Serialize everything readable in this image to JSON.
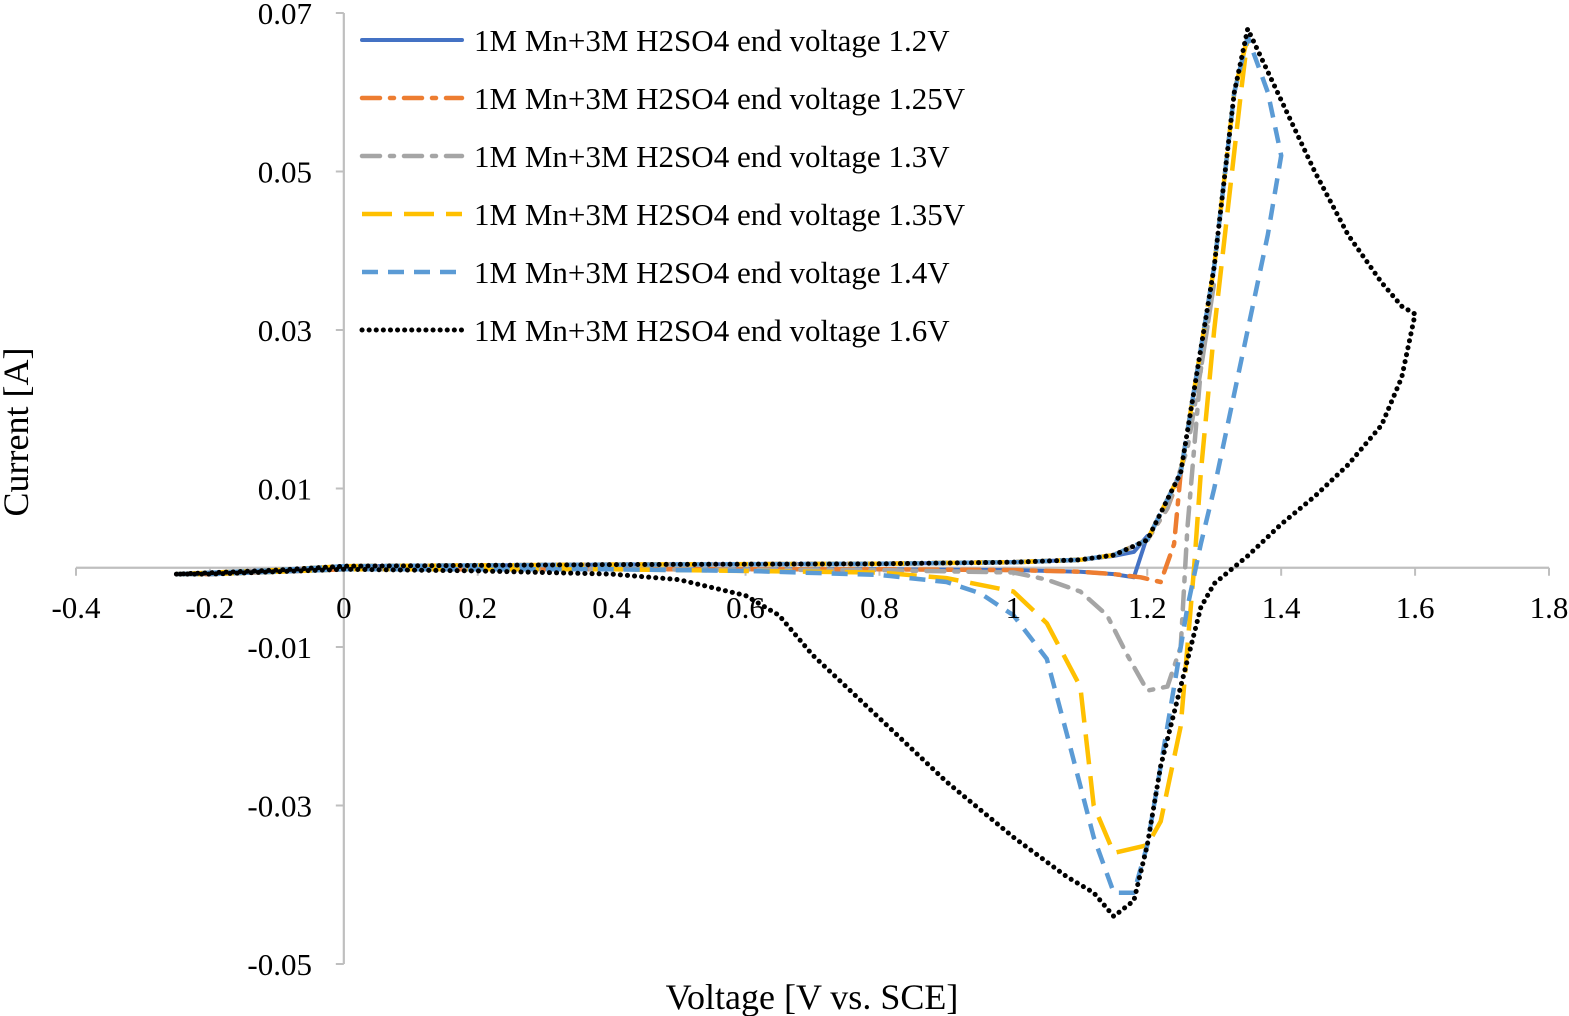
{
  "chart_data": {
    "type": "line",
    "title": "",
    "xlabel": "Voltage [V vs. SCE]",
    "ylabel": "Current [A]",
    "xlim": [
      -0.4,
      1.8
    ],
    "ylim": [
      -0.05,
      0.07
    ],
    "x_ticks": [
      -0.4,
      -0.2,
      0,
      0.2,
      0.4,
      0.6,
      0.8,
      1,
      1.2,
      1.4,
      1.6,
      1.8
    ],
    "x_tick_labels": [
      "-0.4",
      "-0.2",
      "0",
      "0.2",
      "0.4",
      "0.6",
      "0.8",
      "1",
      "1.2",
      "1.4",
      "1.6",
      "1.8"
    ],
    "y_ticks": [
      -0.05,
      -0.03,
      -0.01,
      0.01,
      0.03,
      0.05,
      0.07
    ],
    "y_tick_labels": [
      "-0.05",
      "-0.03",
      "-0.01",
      "0.01",
      "0.03",
      "0.05",
      "0.07"
    ],
    "grid": false,
    "legend_position": "top-left",
    "series": [
      {
        "name": "1M Mn+3M H2SO4 end voltage 1.2V",
        "color": "#4472C4",
        "dash": "solid",
        "x": [
          -0.25,
          -0.1,
          0.0,
          0.4,
          0.8,
          1.0,
          1.1,
          1.15,
          1.18,
          1.2,
          1.18,
          1.15,
          1.1,
          1.0,
          0.8,
          0.4,
          0.0,
          -0.1,
          -0.2,
          -0.25
        ],
        "y": [
          -0.0008,
          -0.0003,
          0.0002,
          0.0004,
          0.0005,
          0.0007,
          0.001,
          0.0015,
          0.002,
          0.004,
          -0.0012,
          -0.0008,
          -0.0005,
          -0.0003,
          -0.0002,
          -0.0002,
          -0.0002,
          -0.0005,
          -0.0008,
          -0.0008
        ]
      },
      {
        "name": "1M Mn+3M H2SO4 end voltage 1.25V",
        "color": "#ED7D31",
        "dash": "dash-dot",
        "x": [
          -0.25,
          -0.1,
          0.0,
          0.4,
          0.8,
          1.0,
          1.1,
          1.15,
          1.2,
          1.23,
          1.25,
          1.24,
          1.22,
          1.19,
          1.15,
          1.1,
          1.0,
          0.8,
          0.4,
          0.0,
          -0.1,
          -0.2,
          -0.25
        ],
        "y": [
          -0.0008,
          -0.0003,
          0.0002,
          0.0004,
          0.0005,
          0.0007,
          0.001,
          0.0016,
          0.0035,
          0.0075,
          0.012,
          0.003,
          -0.0018,
          -0.0012,
          -0.0008,
          -0.0005,
          -0.0003,
          -0.0002,
          -0.0002,
          -0.0002,
          -0.0005,
          -0.0008,
          -0.0008
        ]
      },
      {
        "name": "1M Mn+3M H2SO4 end voltage 1.3V",
        "color": "#A5A5A5",
        "dash": "dash-dot",
        "x": [
          -0.25,
          -0.1,
          0.0,
          0.4,
          0.8,
          1.0,
          1.1,
          1.15,
          1.2,
          1.23,
          1.26,
          1.28,
          1.3,
          1.28,
          1.26,
          1.25,
          1.23,
          1.2,
          1.17,
          1.14,
          1.1,
          1.05,
          1.0,
          0.8,
          0.4,
          0.0,
          -0.1,
          -0.2,
          -0.25
        ],
        "y": [
          -0.0008,
          -0.0003,
          0.0002,
          0.0004,
          0.0005,
          0.0007,
          0.001,
          0.0016,
          0.0035,
          0.0075,
          0.015,
          0.025,
          0.036,
          0.025,
          0.005,
          -0.01,
          -0.015,
          -0.0155,
          -0.011,
          -0.006,
          -0.003,
          -0.0015,
          -0.0006,
          -0.0003,
          -0.0002,
          -0.0002,
          -0.0005,
          -0.0008,
          -0.0008
        ]
      },
      {
        "name": "1M Mn+3M H2SO4 end voltage 1.35V",
        "color": "#FFC000",
        "dash": "long-dash",
        "x": [
          -0.25,
          -0.1,
          0.0,
          0.4,
          0.8,
          1.0,
          1.1,
          1.15,
          1.2,
          1.25,
          1.3,
          1.33,
          1.35,
          1.34,
          1.32,
          1.3,
          1.28,
          1.27,
          1.26,
          1.25,
          1.22,
          1.2,
          1.15,
          1.12,
          1.1,
          1.05,
          1.0,
          0.9,
          0.8,
          0.4,
          0.0,
          -0.1,
          -0.2,
          -0.25
        ],
        "y": [
          -0.0008,
          -0.0003,
          0.0002,
          0.0004,
          0.0005,
          0.0007,
          0.001,
          0.0016,
          0.0035,
          0.012,
          0.038,
          0.06,
          0.067,
          0.06,
          0.045,
          0.03,
          0.012,
          0.0,
          -0.01,
          -0.02,
          -0.032,
          -0.035,
          -0.036,
          -0.03,
          -0.015,
          -0.007,
          -0.003,
          -0.0013,
          -0.0006,
          -0.0002,
          -0.0002,
          -0.0005,
          -0.0008,
          -0.0008
        ]
      },
      {
        "name": "1M Mn+3M H2SO4 end voltage 1.4V",
        "color": "#5B9BD5",
        "dash": "dash",
        "x": [
          -0.25,
          -0.1,
          0.0,
          0.4,
          0.8,
          1.0,
          1.1,
          1.15,
          1.2,
          1.25,
          1.3,
          1.33,
          1.35,
          1.38,
          1.4,
          1.38,
          1.35,
          1.32,
          1.3,
          1.28,
          1.26,
          1.24,
          1.22,
          1.2,
          1.18,
          1.15,
          1.12,
          1.08,
          1.05,
          1.0,
          0.95,
          0.9,
          0.8,
          0.6,
          0.4,
          0.0,
          -0.1,
          -0.2,
          -0.25
        ],
        "y": [
          -0.0008,
          -0.0003,
          0.0002,
          0.0004,
          0.0005,
          0.0007,
          0.001,
          0.0016,
          0.0035,
          0.012,
          0.038,
          0.06,
          0.067,
          0.06,
          0.052,
          0.042,
          0.03,
          0.018,
          0.01,
          0.003,
          -0.005,
          -0.015,
          -0.025,
          -0.035,
          -0.041,
          -0.041,
          -0.034,
          -0.021,
          -0.0115,
          -0.006,
          -0.0032,
          -0.0018,
          -0.0009,
          -0.0004,
          -0.0002,
          -0.0002,
          -0.0005,
          -0.0008,
          -0.0008
        ]
      },
      {
        "name": "1M Mn+3M H2SO4 end voltage 1.6V",
        "color": "#000000",
        "dash": "dot",
        "x": [
          -0.25,
          -0.1,
          0.0,
          0.4,
          0.8,
          1.0,
          1.1,
          1.15,
          1.2,
          1.25,
          1.3,
          1.33,
          1.35,
          1.4,
          1.45,
          1.5,
          1.55,
          1.58,
          1.6,
          1.58,
          1.55,
          1.5,
          1.45,
          1.4,
          1.35,
          1.3,
          1.28,
          1.25,
          1.22,
          1.2,
          1.18,
          1.15,
          1.12,
          1.08,
          1.0,
          0.9,
          0.8,
          0.7,
          0.65,
          0.6,
          0.5,
          0.4,
          0.2,
          0.0,
          -0.1,
          -0.2,
          -0.25
        ],
        "y": [
          -0.0008,
          -0.0003,
          0.0002,
          0.0004,
          0.0005,
          0.0007,
          0.001,
          0.0016,
          0.0035,
          0.012,
          0.038,
          0.06,
          0.068,
          0.059,
          0.05,
          0.042,
          0.036,
          0.033,
          0.032,
          0.024,
          0.018,
          0.013,
          0.009,
          0.0055,
          0.0015,
          -0.002,
          -0.005,
          -0.015,
          -0.025,
          -0.035,
          -0.042,
          -0.044,
          -0.041,
          -0.039,
          -0.034,
          -0.027,
          -0.019,
          -0.011,
          -0.006,
          -0.0035,
          -0.0015,
          -0.0008,
          -0.0004,
          -0.0002,
          -0.0005,
          -0.0008,
          -0.0008
        ]
      }
    ]
  }
}
